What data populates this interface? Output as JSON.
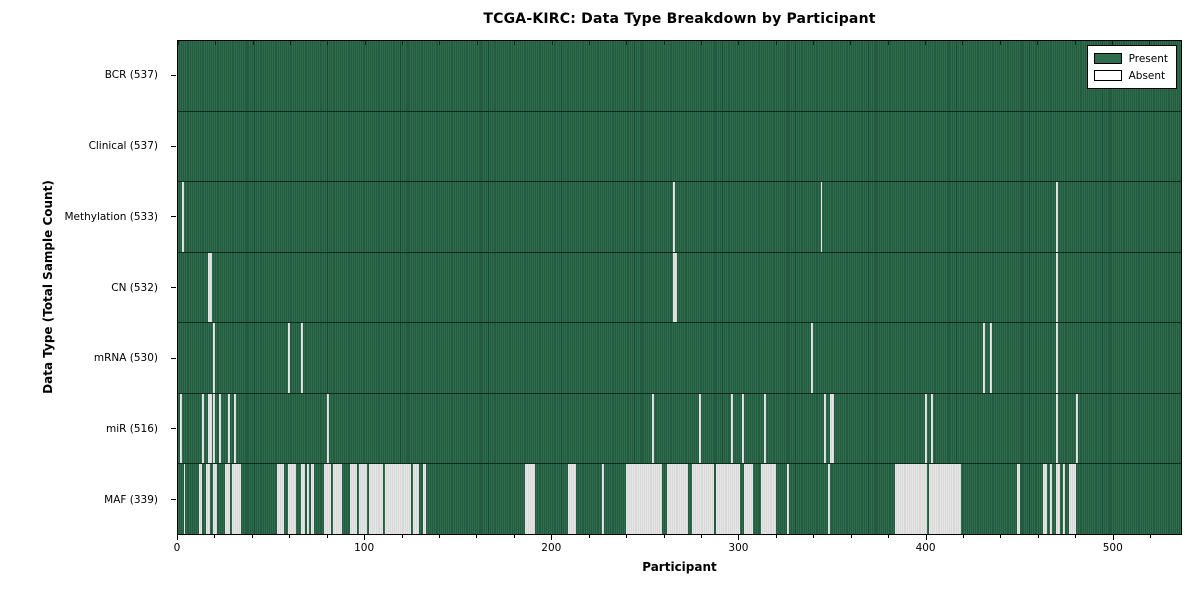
{
  "chart_data": {
    "type": "heatmap",
    "title": "TCGA-KIRC: Data Type Breakdown by Participant",
    "xlabel": "Participant",
    "ylabel": "Data Type (Total Sample Count)",
    "x_ticks": [
      0,
      100,
      200,
      300,
      400,
      500
    ],
    "x_minor_tick_step": 20,
    "x_range": [
      0,
      537
    ],
    "total_participants": 537,
    "grid": false,
    "legend": {
      "position": "upper-right",
      "entries": [
        {
          "label": "Present",
          "color": "#2e6e4e"
        },
        {
          "label": "Absent",
          "color": "#ffffff"
        }
      ]
    },
    "colors": {
      "present_fill": "#2e6e4e",
      "present_edge": "#1b4832",
      "absent_fill": "#e6e6e6",
      "absent_edge": "#c9c9c9",
      "axis": "#000000",
      "background": "#ffffff"
    },
    "rows": [
      {
        "id": "bcr",
        "label": "BCR (537)",
        "present_count": 537,
        "absent_ranges": []
      },
      {
        "id": "clinical",
        "label": "Clinical (537)",
        "present_count": 537,
        "absent_ranges": []
      },
      {
        "id": "methylation",
        "label": "Methylation (533)",
        "present_count": 533,
        "absent_ranges": [
          [
            2,
            1
          ],
          [
            265,
            1
          ],
          [
            344,
            1
          ],
          [
            470,
            1
          ]
        ]
      },
      {
        "id": "cn",
        "label": "CN (532)",
        "present_count": 532,
        "absent_ranges": [
          [
            16,
            2
          ],
          [
            265,
            2
          ],
          [
            470,
            1
          ]
        ]
      },
      {
        "id": "mrna",
        "label": "mRNA (530)",
        "present_count": 530,
        "absent_ranges": [
          [
            19,
            1
          ],
          [
            59,
            1
          ],
          [
            66,
            1
          ],
          [
            339,
            1
          ],
          [
            431,
            1
          ],
          [
            435,
            1
          ],
          [
            470,
            1
          ]
        ]
      },
      {
        "id": "mir",
        "label": "miR (516)",
        "present_count": 516,
        "absent_ranges": [
          [
            1,
            1
          ],
          [
            13,
            1
          ],
          [
            16,
            2
          ],
          [
            19,
            1
          ],
          [
            22,
            1
          ],
          [
            27,
            1
          ],
          [
            30,
            1
          ],
          [
            80,
            1
          ],
          [
            254,
            1
          ],
          [
            279,
            1
          ],
          [
            296,
            1
          ],
          [
            302,
            1
          ],
          [
            314,
            1
          ],
          [
            346,
            1
          ],
          [
            349,
            2
          ],
          [
            400,
            1
          ],
          [
            403,
            1
          ],
          [
            470,
            1
          ],
          [
            481,
            1
          ]
        ]
      },
      {
        "id": "maf",
        "label": "MAF (339)",
        "present_count": 339,
        "absent_ranges": [
          [
            3,
            1
          ],
          [
            11,
            2
          ],
          [
            15,
            2
          ],
          [
            19,
            2
          ],
          [
            25,
            3
          ],
          [
            29,
            5
          ],
          [
            53,
            4
          ],
          [
            59,
            4
          ],
          [
            66,
            2
          ],
          [
            69,
            1
          ],
          [
            71,
            2
          ],
          [
            78,
            4
          ],
          [
            83,
            5
          ],
          [
            92,
            4
          ],
          [
            97,
            4
          ],
          [
            102,
            8
          ],
          [
            111,
            4
          ],
          [
            115,
            10
          ],
          [
            126,
            3
          ],
          [
            131,
            2
          ],
          [
            186,
            5
          ],
          [
            209,
            4
          ],
          [
            227,
            1
          ],
          [
            240,
            19
          ],
          [
            262,
            11
          ],
          [
            275,
            12
          ],
          [
            288,
            13
          ],
          [
            303,
            5
          ],
          [
            312,
            8
          ],
          [
            326,
            1
          ],
          [
            348,
            1
          ],
          [
            384,
            17
          ],
          [
            402,
            17
          ],
          [
            449,
            2
          ],
          [
            463,
            2
          ],
          [
            467,
            1
          ],
          [
            470,
            2
          ],
          [
            474,
            1
          ],
          [
            477,
            4
          ]
        ]
      }
    ]
  }
}
